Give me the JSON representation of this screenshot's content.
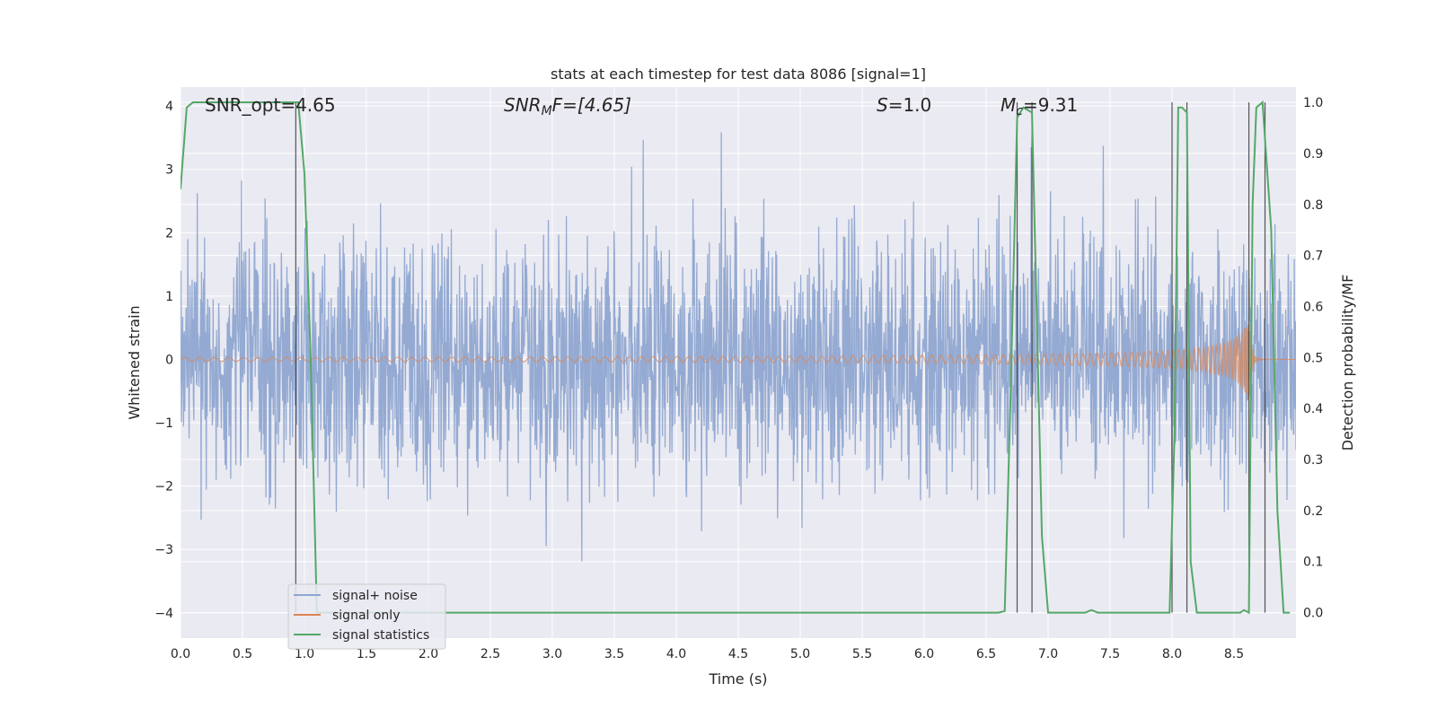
{
  "chart_data": {
    "type": "line",
    "title": "stats at each timestep for test data 8086 [signal=1]",
    "xlabel": "Time (s)",
    "ylabel_left": "Whitened strain",
    "ylabel_right": "Detection probability/MF",
    "xlim": [
      0.0,
      9.0
    ],
    "ylim_left": [
      -4.4,
      4.3
    ],
    "ylim_right": [
      -0.05,
      1.03
    ],
    "x_ticks": [
      "0.0",
      "0.5",
      "1.0",
      "1.5",
      "2.0",
      "2.5",
      "3.0",
      "3.5",
      "4.0",
      "4.5",
      "5.0",
      "5.5",
      "6.0",
      "6.5",
      "7.0",
      "7.5",
      "8.0",
      "8.5"
    ],
    "y_ticks_left": [
      "4",
      "3",
      "2",
      "1",
      "0",
      "−1",
      "−2",
      "−3",
      "−4"
    ],
    "y_ticks_right": [
      "1.0",
      "0.9",
      "0.8",
      "0.7",
      "0.6",
      "0.5",
      "0.4",
      "0.3",
      "0.2",
      "0.1",
      "0.0"
    ],
    "grid": true,
    "legend_position": "lower-left",
    "annotations": {
      "snr_opt": "SNR_opt=4.65",
      "snr_mf_a": "SNR",
      "snr_mf_sub": "M",
      "snr_mf_b": "F=[4.65]",
      "s_a": "S",
      "s_b": "=1.0",
      "mc_a": "M",
      "mc_sub": "c",
      "mc_b": "=9.31"
    },
    "series": [
      {
        "name": "signal+ noise",
        "color": "#8fa6d0",
        "axis": "left",
        "kind": "noise",
        "rms": 1.0,
        "peak_range": [
          -3.6,
          3.6
        ]
      },
      {
        "name": "signal only",
        "color": "#dd8452",
        "axis": "left",
        "kind": "chirp",
        "merger_time": 8.62,
        "peak_amplitude": 0.7
      },
      {
        "name": "signal statistics",
        "color": "#55a868",
        "axis": "right",
        "x": [
          0.0,
          0.05,
          0.1,
          0.9,
          0.93,
          0.95,
          1.0,
          1.05,
          1.1,
          1.15,
          6.6,
          6.65,
          6.7,
          6.75,
          6.8,
          6.87,
          6.95,
          7.0,
          7.3,
          7.35,
          7.4,
          7.98,
          8.02,
          8.05,
          8.08,
          8.12,
          8.15,
          8.2,
          8.55,
          8.58,
          8.62,
          8.65,
          8.68,
          8.73,
          8.8,
          8.85,
          8.9,
          8.95
        ],
        "y": [
          0.83,
          0.99,
          1.0,
          1.0,
          1.0,
          1.0,
          0.86,
          0.5,
          0.0,
          0.0,
          0.0,
          0.003,
          0.45,
          0.97,
          0.99,
          0.98,
          0.15,
          0.0,
          0.0,
          0.005,
          0.0,
          0.0,
          0.35,
          0.99,
          0.99,
          0.98,
          0.1,
          0.0,
          0.0,
          0.005,
          0.0,
          0.8,
          0.99,
          1.0,
          0.75,
          0.2,
          0.0,
          0.0
        ]
      }
    ],
    "event_lines_x": [
      0.93,
      6.75,
      6.87,
      8.0,
      8.12,
      8.62,
      8.75
    ]
  }
}
